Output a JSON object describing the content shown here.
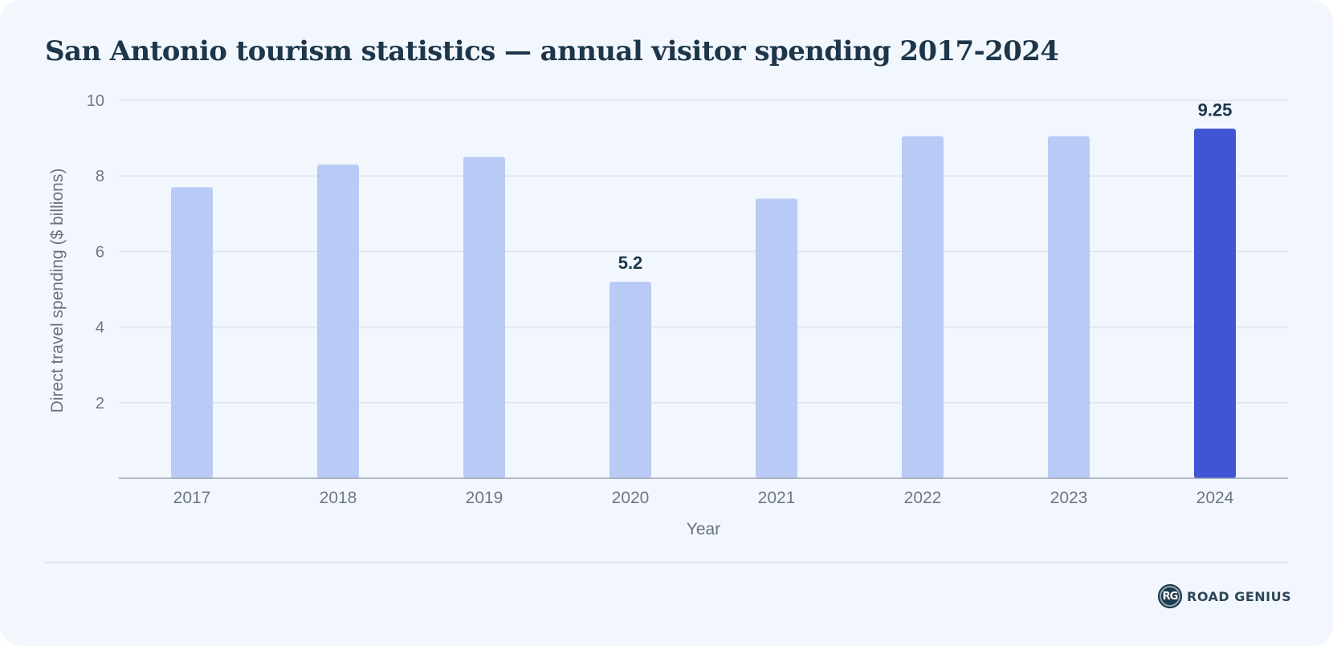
{
  "page": {
    "title": "San Antonio tourism statistics — annual visitor spending 2017-2024",
    "brand_mark": "RG",
    "brand_name": "ROAD GENIUS"
  },
  "colors": {
    "card_background": "#f2f7fd",
    "bar": "#b9caf7",
    "bar_highlight": "#3f55d4",
    "gridline": "#dfe4ea",
    "axis_line": "#9aa4ae",
    "tick_text": "#6f7780",
    "axis_label_text": "#6a727a",
    "data_label_text": "#1d3649"
  },
  "chart_data": {
    "type": "bar",
    "title": "San Antonio tourism statistics — annual visitor spending 2017-2024",
    "xlabel": "Year",
    "ylabel": "Direct travel spending ($ billions)",
    "categories": [
      "2017",
      "2018",
      "2019",
      "2020",
      "2021",
      "2022",
      "2023",
      "2024"
    ],
    "values": [
      7.7,
      8.3,
      8.5,
      5.2,
      7.4,
      9.05,
      9.05,
      9.25
    ],
    "ylim": [
      0,
      10
    ],
    "yticks": [
      2,
      4,
      6,
      8,
      10
    ],
    "grid": true,
    "highlight_index": 7,
    "data_labels": [
      {
        "index": 3,
        "text": "5.2"
      },
      {
        "index": 7,
        "text": "9.25"
      }
    ]
  }
}
